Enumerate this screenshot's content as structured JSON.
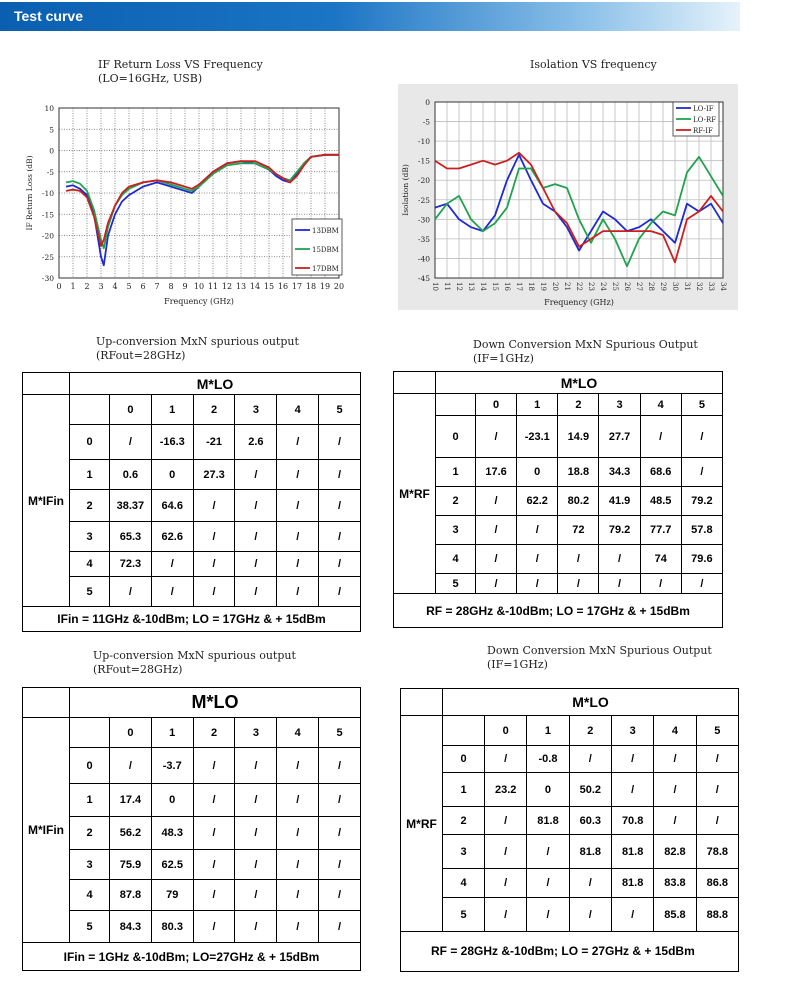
{
  "section_title": "Test curve",
  "charts_text": {
    "if_return": {
      "title_line1": "IF Return Loss VS Frequency",
      "title_line2": "(LO=16GHz, USB)"
    },
    "isolation": {
      "title": "Isolation VS frequency"
    }
  },
  "chart_data": [
    {
      "type": "line",
      "title": "IF Return Loss VS Frequency (LO=16GHz, USB)",
      "xlabel": "Frequency (GHz)",
      "ylabel": "IF Return Loss (dB)",
      "xlim": [
        0,
        20
      ],
      "ylim": [
        -30,
        10
      ],
      "xticks": [
        0,
        1,
        2,
        3,
        4,
        5,
        6,
        7,
        8,
        9,
        10,
        11,
        12,
        13,
        14,
        15,
        16,
        17,
        18,
        19,
        20
      ],
      "yticks": [
        10,
        5,
        0,
        -5,
        -10,
        -15,
        -20,
        -25,
        -30
      ],
      "grid": true,
      "legend_position": "bottom-right",
      "x": [
        0.5,
        1,
        1.5,
        2,
        2.5,
        3,
        3.2,
        3.5,
        4,
        4.5,
        5,
        6,
        7,
        8,
        9,
        9.5,
        10,
        11,
        12,
        13,
        14,
        15,
        15.5,
        16,
        16.5,
        17,
        17.5,
        18,
        19,
        20
      ],
      "series": [
        {
          "name": "13DBM",
          "color": "#1f2bd0",
          "values": [
            -8.5,
            -8.2,
            -9,
            -10.5,
            -15,
            -25,
            -27,
            -20,
            -15,
            -12,
            -10.5,
            -8.5,
            -7.5,
            -8.5,
            -9.5,
            -10,
            -8.5,
            -5,
            -3,
            -2.5,
            -3,
            -4.5,
            -6,
            -7,
            -7.5,
            -5.5,
            -3,
            -1.5,
            -1,
            -1
          ]
        },
        {
          "name": "15DBM",
          "color": "#21a24f",
          "values": [
            -7.5,
            -7.2,
            -7.8,
            -9.5,
            -14,
            -21,
            -23,
            -18,
            -13,
            -10.5,
            -9,
            -7.5,
            -7,
            -8,
            -9,
            -9.5,
            -8.5,
            -5.5,
            -3.5,
            -3,
            -3,
            -4.5,
            -5.5,
            -6.5,
            -7,
            -5,
            -3,
            -1.5,
            -1,
            -1
          ]
        },
        {
          "name": "17DBM",
          "color": "#c8211f",
          "values": [
            -9.5,
            -9.2,
            -9.5,
            -11,
            -15.5,
            -22.5,
            -21,
            -17,
            -13,
            -10,
            -8.5,
            -7.5,
            -7,
            -7.5,
            -8.5,
            -9,
            -8,
            -5,
            -3,
            -2.5,
            -2.5,
            -4,
            -5.5,
            -6.5,
            -7.5,
            -6,
            -3.5,
            -1.5,
            -1,
            -1
          ]
        }
      ]
    },
    {
      "type": "line",
      "title": "Isolation VS frequency",
      "xlabel": "Frequency (GHz)",
      "ylabel": "Isolation (dB)",
      "xlim": [
        10,
        34
      ],
      "ylim": [
        -45,
        0
      ],
      "xticks": [
        10,
        11,
        12,
        13,
        14,
        15,
        16,
        17,
        18,
        19,
        20,
        21,
        22,
        23,
        24,
        25,
        26,
        27,
        28,
        29,
        30,
        31,
        32,
        33,
        34
      ],
      "yticks": [
        0,
        -5,
        -10,
        -15,
        -20,
        -25,
        -30,
        -35,
        -40,
        -45
      ],
      "grid": true,
      "legend_position": "top-right",
      "x": [
        10,
        11,
        12,
        13,
        14,
        15,
        16,
        17,
        18,
        19,
        20,
        21,
        22,
        23,
        24,
        25,
        26,
        27,
        28,
        29,
        30,
        31,
        32,
        33,
        34
      ],
      "series": [
        {
          "name": "LO-IF",
          "color": "#1f2bd0",
          "values": [
            -27,
            -26,
            -30,
            -32,
            -33,
            -29,
            -20,
            -13.5,
            -20,
            -26,
            -28,
            -32,
            -38,
            -33,
            -28,
            -30,
            -33,
            -32,
            -30,
            -33,
            -36,
            -26,
            -28,
            -26,
            -31
          ]
        },
        {
          "name": "LO-RF",
          "color": "#21a24f",
          "values": [
            -30,
            -26,
            -24,
            -30,
            -33,
            -31,
            -27,
            -17,
            -17,
            -22,
            -21,
            -22,
            -30,
            -36,
            -30,
            -35,
            -42,
            -35,
            -31,
            -28,
            -29,
            -18,
            -14,
            -19,
            -24
          ]
        },
        {
          "name": "RF-IF",
          "color": "#c8211f",
          "values": [
            -15,
            -17,
            -17,
            -16,
            -15,
            -16,
            -15,
            -13,
            -16,
            -22,
            -28,
            -31,
            -37,
            -35,
            -33,
            -33,
            -33,
            -33,
            -33,
            -34,
            -41,
            -30,
            -28,
            -24,
            -28
          ]
        }
      ]
    }
  ],
  "tables": [
    {
      "title_line1": "Up-conversion MxN spurious output",
      "title_line2": "(RFout=28GHz)",
      "header": "M*LO",
      "row_label": "M*IFin",
      "cols": [
        "0",
        "1",
        "2",
        "3",
        "4",
        "5"
      ],
      "rows": [
        {
          "n": "0",
          "cells": [
            "/",
            "-16.3",
            "-21",
            "2.6",
            "/",
            "/"
          ]
        },
        {
          "n": "1",
          "cells": [
            "0.6",
            "0",
            "27.3",
            "/",
            "/",
            "/"
          ]
        },
        {
          "n": "2",
          "cells": [
            "38.37",
            "64.6",
            "/",
            "/",
            "/",
            "/"
          ]
        },
        {
          "n": "3",
          "cells": [
            "65.3",
            "62.6",
            "/",
            "/",
            "/",
            "/"
          ]
        },
        {
          "n": "4",
          "cells": [
            "72.3",
            "/",
            "/",
            "/",
            "/",
            "/"
          ]
        },
        {
          "n": "5",
          "cells": [
            "/",
            "/",
            "/",
            "/",
            "/",
            "/"
          ]
        }
      ],
      "footer": "IFin = 11GHz &-10dBm; LO = 17GHz & + 15dBm"
    },
    {
      "title_line1": "Down Conversion MxN Spurious Output",
      "title_line2": "(IF=1GHz)",
      "header": "M*LO",
      "row_label": "M*RF",
      "cols": [
        "0",
        "1",
        "2",
        "3",
        "4",
        "5"
      ],
      "rows": [
        {
          "n": "0",
          "cells": [
            "/",
            "-23.1",
            "14.9",
            "27.7",
            "/",
            "/"
          ]
        },
        {
          "n": "1",
          "cells": [
            "17.6",
            "0",
            "18.8",
            "34.3",
            "68.6",
            "/"
          ]
        },
        {
          "n": "2",
          "cells": [
            "/",
            "62.2",
            "80.2",
            "41.9",
            "48.5",
            "79.2"
          ]
        },
        {
          "n": "3",
          "cells": [
            "/",
            "/",
            "72",
            "79.2",
            "77.7",
            "57.8"
          ]
        },
        {
          "n": "4",
          "cells": [
            "/",
            "/",
            "/",
            "/",
            "74",
            "79.6"
          ]
        },
        {
          "n": "5",
          "cells": [
            "/",
            "/",
            "/",
            "/",
            "/",
            "/"
          ]
        }
      ],
      "footer": "RF = 28GHz &-10dBm; LO = 17GHz & + 15dBm"
    },
    {
      "title_line1": "Up-conversion MxN spurious output",
      "title_line2": "(RFout=28GHz)",
      "header": "M*LO",
      "row_label": "M*IFin",
      "cols": [
        "0",
        "1",
        "2",
        "3",
        "4",
        "5"
      ],
      "rows": [
        {
          "n": "0",
          "cells": [
            "/",
            "-3.7",
            "/",
            "/",
            "/",
            "/"
          ]
        },
        {
          "n": "1",
          "cells": [
            "17.4",
            "0",
            "/",
            "/",
            "/",
            "/"
          ]
        },
        {
          "n": "2",
          "cells": [
            "56.2",
            "48.3",
            "/",
            "/",
            "/",
            "/"
          ]
        },
        {
          "n": "3",
          "cells": [
            "75.9",
            "62.5",
            "/",
            "/",
            "/",
            "/"
          ]
        },
        {
          "n": "4",
          "cells": [
            "87.8",
            "79",
            "/",
            "/",
            "/",
            "/"
          ]
        },
        {
          "n": "5",
          "cells": [
            "84.3",
            "80.3",
            "/",
            "/",
            "/",
            "/"
          ]
        }
      ],
      "footer": "IFin = 1GHz &-10dBm; LO=27GHz & + 15dBm"
    },
    {
      "title_line1": "Down Conversion MxN Spurious Output",
      "title_line2": "(IF=1GHz)",
      "header": "M*LO",
      "row_label": "M*RF",
      "cols": [
        "0",
        "1",
        "2",
        "3",
        "4",
        "5"
      ],
      "rows": [
        {
          "n": "0",
          "cells": [
            "/",
            "-0.8",
            "/",
            "/",
            "/",
            "/"
          ]
        },
        {
          "n": "1",
          "cells": [
            "23.2",
            "0",
            "50.2",
            "/",
            "/",
            "/"
          ]
        },
        {
          "n": "2",
          "cells": [
            "/",
            "81.8",
            "60.3",
            "70.8",
            "/",
            "/"
          ]
        },
        {
          "n": "3",
          "cells": [
            "/",
            "/",
            "81.8",
            "81.8",
            "82.8",
            "78.8"
          ]
        },
        {
          "n": "4",
          "cells": [
            "/",
            "/",
            "/",
            "81.8",
            "83.8",
            "86.8"
          ]
        },
        {
          "n": "5",
          "cells": [
            "/",
            "/",
            "/",
            "/",
            "85.8",
            "88.8"
          ]
        }
      ],
      "footer": "RF = 28GHz &-10dBm; LO = 27GHz & + 15dBm"
    }
  ]
}
